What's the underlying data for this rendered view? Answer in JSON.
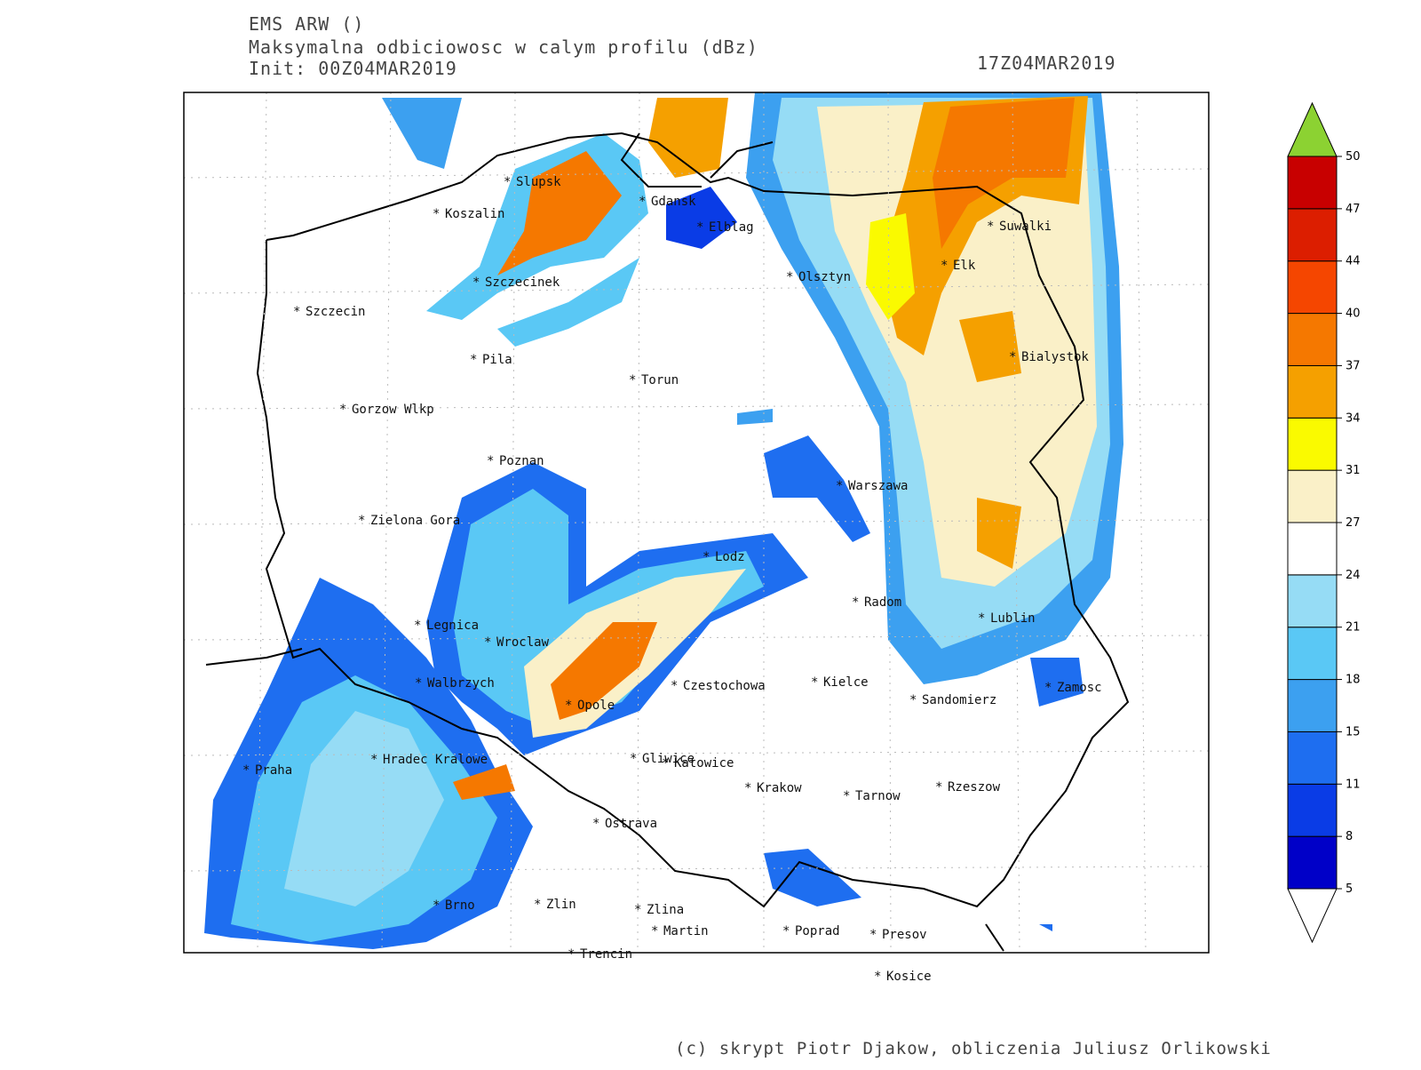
{
  "header": {
    "title": "EMS ARW ()",
    "subtitle": "Maksymalna odbiciowosc w calym profilu (dBz)",
    "init": "Init: 00Z04MAR2019",
    "valid": "17Z04MAR2019"
  },
  "map": {
    "cities": [
      "Slupsk",
      "Koszalin",
      "Gdansk",
      "Elblag",
      "Szczecinek",
      "Szczecin",
      "Olsztyn",
      "Suwalki",
      "Elk",
      "Pila",
      "Torun",
      "Bialystok",
      "Gorzow Wlkp",
      "Poznan",
      "Warszawa",
      "Zielona Gora",
      "Lodz",
      "Radom",
      "Lublin",
      "Legnica",
      "Wroclaw",
      "Walbrzych",
      "Czestochowa",
      "Kielce",
      "Zamosc",
      "Sandomierz",
      "Opole",
      "Praha",
      "Hradec Kralowe",
      "Gliwice",
      "Katowice",
      "Krakow",
      "Tarnow",
      "Rzeszow",
      "Ostrava",
      "Brno",
      "Zlin",
      "Zlina",
      "Martin",
      "Poprad",
      "Presov",
      "Trencin",
      "Kosice"
    ]
  },
  "colorbar": {
    "ticks": [
      5,
      8,
      11,
      15,
      18,
      21,
      24,
      27,
      31,
      34,
      37,
      40,
      44,
      47,
      50
    ],
    "colors": [
      "#0000c8",
      "#0a3ce6",
      "#1e6ef0",
      "#3ca0f0",
      "#5ac8f5",
      "#96dcf5",
      "#ffffff",
      "#faf0c8",
      "#fafa00",
      "#f5a000",
      "#f57800",
      "#f54600",
      "#dc1e00",
      "#c80000"
    ],
    "over_color": "#8cd232",
    "under_color": "#ffffff"
  },
  "footer": {
    "credit": "(c) skrypt Piotr Djakow, obliczenia Juliusz Orlikowski"
  }
}
